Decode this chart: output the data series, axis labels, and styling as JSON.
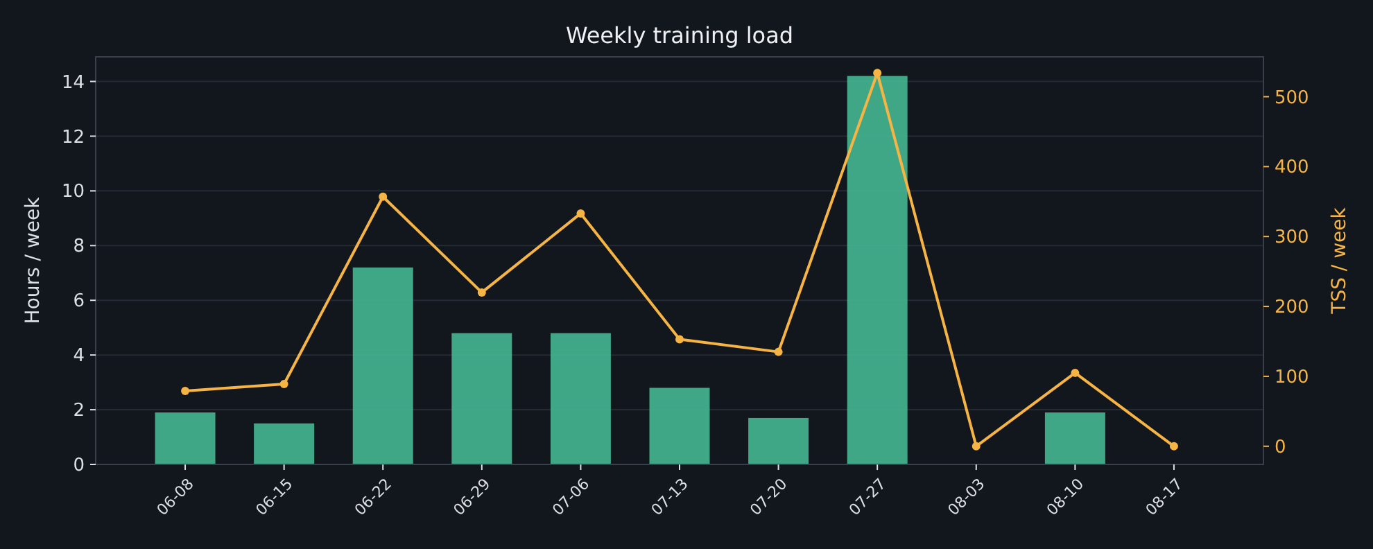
{
  "chart_data": {
    "type": "bar",
    "title": "Weekly training load",
    "ylabel": "Hours / week",
    "y2label": "TSS / week",
    "categories": [
      "06-08",
      "06-15",
      "06-22",
      "06-29",
      "07-06",
      "07-13",
      "07-20",
      "07-27",
      "08-03",
      "08-10",
      "08-17"
    ],
    "series": [
      {
        "color": "#45b792",
        "values": [
          1.9,
          1.5,
          7.2,
          4.8,
          4.8,
          2.8,
          1.7,
          14.2,
          0,
          1.9,
          0
        ]
      },
      {
        "type": "line",
        "axis": "y2",
        "color": "#f5b443",
        "marker": "circle",
        "values": [
          79,
          89,
          357,
          220,
          333,
          153,
          135,
          534,
          0,
          105,
          0
        ]
      }
    ],
    "ylim": [
      0,
      14.9
    ],
    "yticks": [
      0,
      2,
      4,
      6,
      8,
      10,
      12,
      14
    ],
    "y2lim": [
      -26,
      557
    ],
    "y2ticks": [
      0,
      100,
      200,
      300,
      400,
      500
    ],
    "grid": "y",
    "legend": false
  }
}
